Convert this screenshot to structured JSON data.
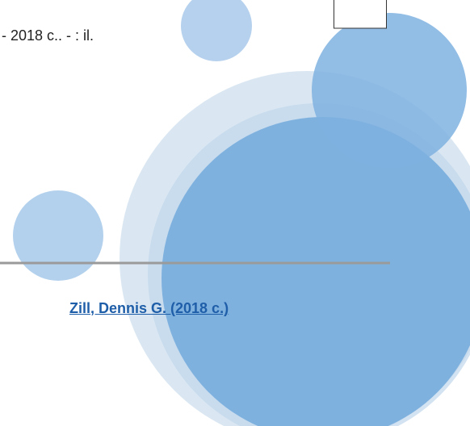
{
  "record": {
    "imprint": "- 2018 c.. - : il.",
    "link": "Zill, Dennis G. (2018 c.)"
  }
}
